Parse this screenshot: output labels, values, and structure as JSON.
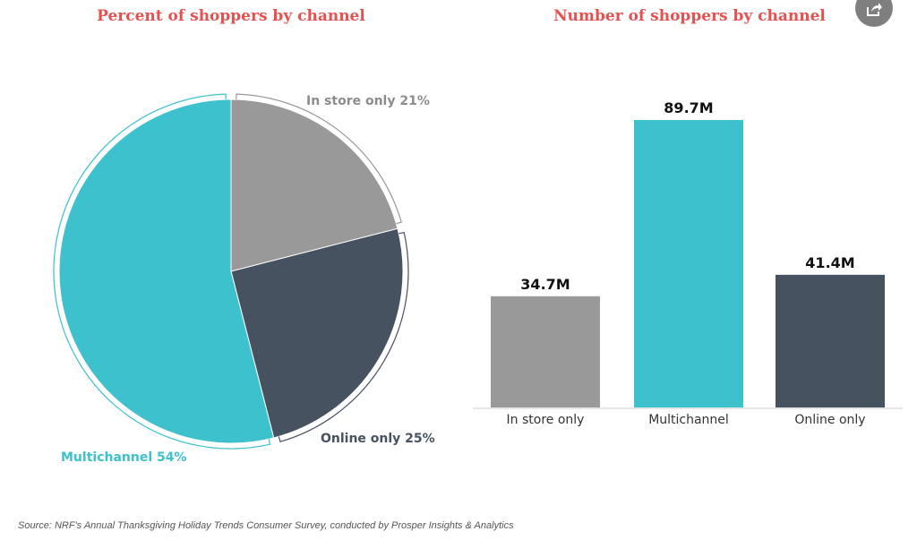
{
  "share_button": {
    "icon": "share-icon"
  },
  "chart_data": [
    {
      "type": "pie",
      "title": "Percent of shoppers by channel",
      "slices": [
        {
          "label": "In store only",
          "value": 21,
          "display": "In store only 21%",
          "color": "#999999"
        },
        {
          "label": "Online only",
          "value": 25,
          "display": "Online only 25%",
          "color": "#475261"
        },
        {
          "label": "Multichannel",
          "value": 54,
          "display": "Multichannel 54%",
          "color": "#3cc1cd"
        }
      ]
    },
    {
      "type": "bar",
      "title": "Number of shoppers by channel",
      "categories": [
        "In store only",
        "Multichannel",
        "Online only"
      ],
      "values": [
        34.7,
        89.7,
        41.4
      ],
      "value_labels": [
        "34.7M",
        "89.7M",
        "41.4M"
      ],
      "colors": [
        "#999999",
        "#3cc1cd",
        "#475261"
      ],
      "ylim": [
        0,
        89.7
      ]
    }
  ],
  "source": "Source:  NRF's Annual Thanksgiving Holiday Trends Consumer Survey, conducted by Prosper Insights & Analytics"
}
